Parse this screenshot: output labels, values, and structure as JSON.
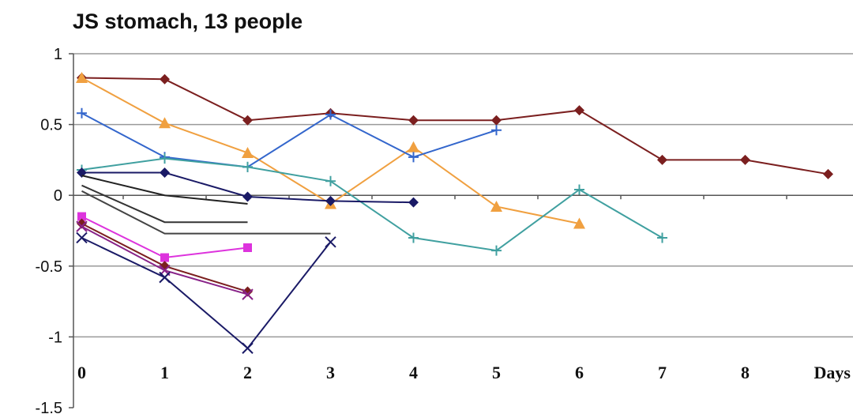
{
  "chart_data": {
    "type": "line",
    "title": "JS stomach, 13 people",
    "xlabel": "Days",
    "ylabel": "",
    "x_ticks": [
      "0",
      "1",
      "2",
      "3",
      "4",
      "5",
      "6",
      "7",
      "8"
    ],
    "y_ticks": [
      "1",
      "0.5",
      "0",
      "-0.5",
      "-1",
      "-1.5"
    ],
    "xlim": [
      -0.1,
      9.3
    ],
    "ylim": [
      -1.5,
      1
    ],
    "grid": true,
    "legend": "none",
    "series": [
      {
        "color": "#7B1F1F",
        "marker": "diamond",
        "x": [
          0,
          1,
          2,
          3,
          4,
          5,
          6,
          7,
          8,
          9
        ],
        "y": [
          0.83,
          0.82,
          0.53,
          0.58,
          0.53,
          0.53,
          0.6,
          0.25,
          0.25,
          0.15
        ]
      },
      {
        "color": "#F0A040",
        "marker": "triangle",
        "x": [
          0,
          1,
          2,
          3,
          4,
          5,
          6
        ],
        "y": [
          0.83,
          0.51,
          0.3,
          -0.06,
          0.34,
          -0.08,
          -0.2
        ]
      },
      {
        "color": "#3366CC",
        "marker": "cross",
        "x": [
          0,
          1,
          2,
          3,
          4,
          5
        ],
        "y": [
          0.58,
          0.27,
          0.2,
          0.57,
          0.27,
          0.46
        ]
      },
      {
        "color": "#40A0A0",
        "marker": "plus",
        "x": [
          0,
          1,
          2,
          3,
          4,
          5,
          6,
          7
        ],
        "y": [
          0.18,
          0.26,
          0.2,
          0.1,
          -0.3,
          -0.39,
          0.04,
          -0.3
        ]
      },
      {
        "color": "#1A1A66",
        "marker": "diamond",
        "x": [
          0,
          1,
          2,
          3,
          4
        ],
        "y": [
          0.16,
          0.16,
          -0.01,
          -0.04,
          -0.05
        ]
      },
      {
        "color": "#222222",
        "marker": "none",
        "x": [
          0,
          1,
          2
        ],
        "y": [
          0.14,
          0.0,
          -0.06
        ]
      },
      {
        "color": "#333333",
        "marker": "none",
        "x": [
          0,
          1,
          2
        ],
        "y": [
          0.07,
          -0.19,
          -0.19
        ]
      },
      {
        "color": "#444444",
        "marker": "none",
        "x": [
          0,
          1,
          2,
          3
        ],
        "y": [
          0.03,
          -0.27,
          -0.27,
          -0.27
        ]
      },
      {
        "color": "#DD33DD",
        "marker": "square",
        "x": [
          0,
          1,
          2
        ],
        "y": [
          -0.15,
          -0.44,
          -0.37
        ]
      },
      {
        "color": "#7B1F1F",
        "marker": "diamond",
        "x": [
          0,
          1,
          2
        ],
        "y": [
          -0.2,
          -0.5,
          -0.68
        ]
      },
      {
        "color": "#882288",
        "marker": "x",
        "x": [
          0,
          1,
          2
        ],
        "y": [
          -0.22,
          -0.53,
          -0.7
        ]
      },
      {
        "color": "#1A1A66",
        "marker": "x",
        "x": [
          0,
          1,
          2,
          3
        ],
        "y": [
          -0.3,
          -0.58,
          -1.08,
          -0.33
        ]
      }
    ]
  }
}
